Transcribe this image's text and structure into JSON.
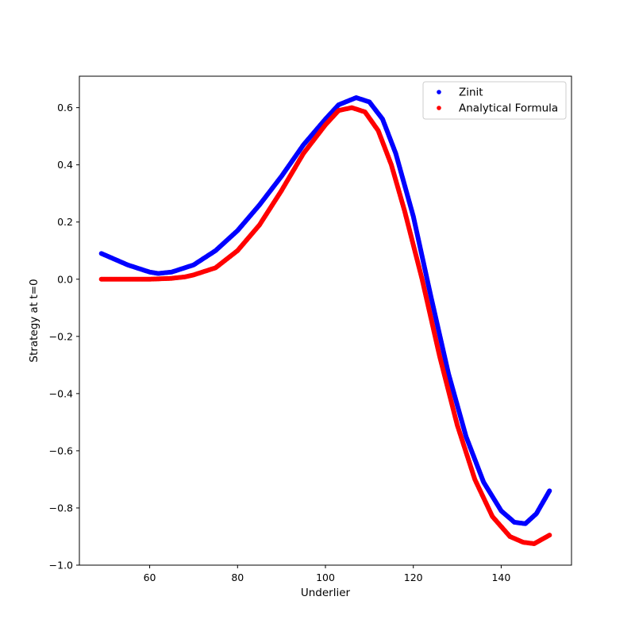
{
  "chart_data": {
    "type": "scatter",
    "title": "",
    "xlabel": "Underlier",
    "ylabel": "Strategy at t=0",
    "xlim": [
      44,
      156
    ],
    "ylim": [
      -1.0,
      0.71
    ],
    "xticks": [
      60,
      80,
      100,
      120,
      140
    ],
    "yticks": [
      -1.0,
      -0.8,
      -0.6,
      -0.4,
      -0.2,
      0.0,
      0.2,
      0.4,
      0.6
    ],
    "ytick_labels": [
      "−1.0",
      "−0.8",
      "−0.6",
      "−0.4",
      "−0.2",
      "0.0",
      "0.2",
      "0.4",
      "0.6"
    ],
    "xtick_labels": [
      "60",
      "80",
      "100",
      "120",
      "140"
    ],
    "grid": false,
    "legend": "top-right",
    "series": [
      {
        "name": "Zinit",
        "color": "#0000ff",
        "x": [
          49,
          55,
          60,
          62,
          65,
          70,
          75,
          80,
          85,
          90,
          95,
          100,
          103,
          107,
          110,
          113,
          116,
          120,
          124,
          128,
          132,
          136,
          140,
          143,
          145.5,
          148,
          151
        ],
        "y": [
          0.09,
          0.05,
          0.025,
          0.02,
          0.025,
          0.05,
          0.1,
          0.17,
          0.26,
          0.36,
          0.47,
          0.56,
          0.61,
          0.635,
          0.62,
          0.56,
          0.44,
          0.22,
          -0.06,
          -0.33,
          -0.55,
          -0.71,
          -0.81,
          -0.85,
          -0.855,
          -0.82,
          -0.74
        ]
      },
      {
        "name": "Analytical Formula",
        "color": "#ff0000",
        "x": [
          49,
          55,
          60,
          65,
          68,
          70,
          75,
          80,
          85,
          90,
          95,
          100,
          103,
          106,
          109,
          112,
          115,
          118,
          122,
          126,
          130,
          134,
          138,
          142,
          145,
          147.5,
          151
        ],
        "y": [
          0.0,
          0.0,
          0.0,
          0.003,
          0.008,
          0.015,
          0.04,
          0.1,
          0.19,
          0.31,
          0.44,
          0.54,
          0.59,
          0.6,
          0.585,
          0.52,
          0.4,
          0.24,
          0.0,
          -0.27,
          -0.51,
          -0.7,
          -0.83,
          -0.9,
          -0.92,
          -0.925,
          -0.895
        ]
      }
    ]
  }
}
